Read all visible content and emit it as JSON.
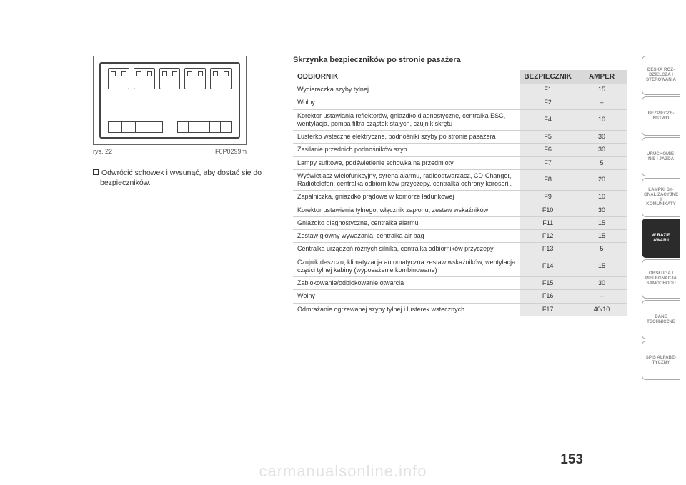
{
  "figure": {
    "caption_left": "rys. 22",
    "caption_right": "F0P0299m"
  },
  "instruction": "Odwrócić schowek i wysunąć, aby dostać się do bezpieczników.",
  "table": {
    "title": "Skrzynka bezpieczników po stronie pasażera",
    "headers": {
      "receiver": "ODBIORNIK",
      "fuse": "BEZPIECZNIK",
      "amp": "AMPER"
    },
    "rows": [
      {
        "desc": "Wycieraczka szyby tylnej",
        "fuse": "F1",
        "amp": "15"
      },
      {
        "desc": "Wolny",
        "fuse": "F2",
        "amp": "–"
      },
      {
        "desc": "Korektor ustawiania reflektorów, gniazdko diagnostyczne, centralka ESC, wentylacja, pompa filtra cząstek stałych, czujnik skrętu",
        "fuse": "F4",
        "amp": "10"
      },
      {
        "desc": "Lusterko wsteczne elektryczne, podnośniki szyby po stronie pasażera",
        "fuse": "F5",
        "amp": "30"
      },
      {
        "desc": "Zasilanie przednich podnośników szyb",
        "fuse": "F6",
        "amp": "30"
      },
      {
        "desc": "Lampy sufitowe, podświetlenie schowka na przedmioty",
        "fuse": "F7",
        "amp": "5"
      },
      {
        "desc": "Wyświetlacz wielofunkcyjny, syrena alarmu, radioodtwarzacz, CD-Changer, Radiotelefon, centralka odbiorników przyczepy, centralka ochrony karoserii.",
        "fuse": "F8",
        "amp": "20"
      },
      {
        "desc": "Zapalniczka, gniazdko prądowe w komorze ładunkowej",
        "fuse": "F9",
        "amp": "10"
      },
      {
        "desc": "Korektor ustawienia tylnego, włącznik zapłonu, zestaw wskaźników",
        "fuse": "F10",
        "amp": "30"
      },
      {
        "desc": "Gniazdko diagnostyczne, centralka alarmu",
        "fuse": "F11",
        "amp": "15"
      },
      {
        "desc": "Zestaw główny wyważania, centralka air bag",
        "fuse": "F12",
        "amp": "15"
      },
      {
        "desc": "Centralka urządzeń różnych silnika, centralka odbiorników przyczepy",
        "fuse": "F13",
        "amp": "5"
      },
      {
        "desc": "Czujnik deszczu, klimatyzacja automatyczna zestaw wskaźników, wentylacja części tylnej kabiny (wyposażenie kombinowane)",
        "fuse": "F14",
        "amp": "15"
      },
      {
        "desc": "Zablokowanie/odblokowanie otwarcia",
        "fuse": "F15",
        "amp": "30"
      },
      {
        "desc": "Wolny",
        "fuse": "F16",
        "amp": "–"
      },
      {
        "desc": "Odmrażanie ogrzewanej szyby tylnej i lusterek wstecznych",
        "fuse": "F17",
        "amp": "40/10"
      }
    ]
  },
  "side_tabs": [
    {
      "label": "DESKA ROZ-\nDZIELCZA I\nSTEROWANIA",
      "active": false
    },
    {
      "label": "BEZPIECZE-\nŃSTWO",
      "active": false
    },
    {
      "label": "URUCHOMIE-\nNIE I JAZDA",
      "active": false
    },
    {
      "label": "LAMPKI SY-\nGNALIZACYJNE I\nKOMUNIKATY",
      "active": false
    },
    {
      "label": "W RAZIE\nAWARII",
      "active": true
    },
    {
      "label": "OBSŁUGA I\nPIELĘGNACJA\nSAMOCHODU",
      "active": false
    },
    {
      "label": "DANE\nTECHNICZNE",
      "active": false
    },
    {
      "label": "SPIS ALFABE-\nTYCZNY",
      "active": false
    }
  ],
  "page_number": "153",
  "watermark": "carmanualsonline.info"
}
